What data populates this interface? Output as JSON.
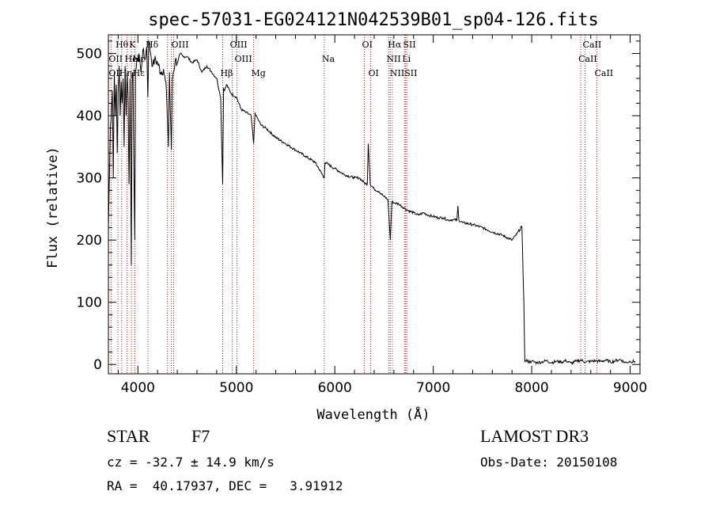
{
  "chart_data": {
    "type": "line",
    "title": "spec-57031-EG024121N042539B01_sp04-126.fits",
    "xlabel": "Wavelength (Å)",
    "ylabel": "Flux (relative)",
    "xlim": [
      3700,
      9100
    ],
    "ylim": [
      -15,
      530
    ],
    "xticks": [
      4000,
      5000,
      6000,
      7000,
      8000,
      9000
    ],
    "yticks": [
      0,
      100,
      200,
      300,
      400,
      500
    ],
    "series": [
      {
        "name": "flux",
        "x": [
          3700,
          3720,
          3740,
          3750,
          3760,
          3770,
          3780,
          3790,
          3800,
          3810,
          3820,
          3830,
          3840,
          3850,
          3860,
          3870,
          3880,
          3890,
          3900,
          3910,
          3920,
          3933,
          3940,
          3950,
          3960,
          3968,
          3975,
          3985,
          3995,
          4010,
          4030,
          4050,
          4070,
          4090,
          4101,
          4110,
          4130,
          4150,
          4170,
          4200,
          4230,
          4260,
          4290,
          4310,
          4320,
          4330,
          4340,
          4350,
          4360,
          4380,
          4400,
          4430,
          4460,
          4500,
          4550,
          4600,
          4650,
          4700,
          4750,
          4800,
          4840,
          4861,
          4870,
          4880,
          4900,
          4950,
          5000,
          5050,
          5100,
          5150,
          5175,
          5190,
          5200,
          5250,
          5300,
          5400,
          5500,
          5600,
          5700,
          5800,
          5893,
          5900,
          6000,
          6100,
          6200,
          6250,
          6300,
          6330,
          6340,
          6360,
          6400,
          6450,
          6500,
          6540,
          6563,
          6580,
          6600,
          6650,
          6700,
          6750,
          6800,
          6850,
          6900,
          6950,
          7000,
          7050,
          7100,
          7150,
          7200,
          7240,
          7250,
          7260,
          7300,
          7400,
          7500,
          7600,
          7700,
          7800,
          7850,
          7900,
          7920,
          7930,
          7940,
          7950,
          7960,
          8000,
          8050,
          8100,
          8150,
          8200,
          8250,
          8300,
          8350,
          8400,
          8450,
          8500,
          8550,
          8600,
          8650,
          8700,
          8750,
          8800,
          8850,
          8900,
          8950,
          9000,
          9050
        ],
        "y": [
          220,
          380,
          440,
          300,
          470,
          400,
          450,
          340,
          440,
          480,
          400,
          455,
          420,
          460,
          350,
          480,
          400,
          470,
          430,
          290,
          460,
          160,
          450,
          470,
          300,
          200,
          470,
          480,
          490,
          500,
          470,
          505,
          490,
          510,
          430,
          520,
          500,
          480,
          490,
          485,
          470,
          475,
          440,
          350,
          470,
          400,
          345,
          460,
          470,
          490,
          485,
          500,
          495,
          495,
          485,
          490,
          470,
          480,
          470,
          460,
          430,
          290,
          445,
          440,
          450,
          435,
          430,
          410,
          405,
          400,
          355,
          405,
          400,
          385,
          380,
          365,
          355,
          345,
          335,
          325,
          300,
          325,
          315,
          305,
          300,
          300,
          292,
          290,
          355,
          290,
          282,
          278,
          270,
          265,
          200,
          262,
          260,
          258,
          252,
          247,
          244,
          240,
          244,
          240,
          238,
          236,
          236,
          232,
          233,
          232,
          255,
          232,
          228,
          225,
          220,
          213,
          208,
          200,
          210,
          222,
          100,
          5,
          5,
          8,
          4,
          5,
          3,
          4,
          6,
          3,
          5,
          4,
          6,
          2,
          5,
          7,
          4,
          5,
          6,
          5,
          7,
          4,
          6,
          8,
          3,
          5,
          5
        ]
      }
    ],
    "line_markers": [
      {
        "label": "Hθ",
        "wl": 3797,
        "row": 1
      },
      {
        "label": "OII",
        "wl": 3727,
        "row": 2
      },
      {
        "label": "OII",
        "wl": 3727,
        "row": 3
      },
      {
        "label": "K",
        "wl": 3934,
        "row": 1
      },
      {
        "label": "HeI",
        "wl": 3889,
        "row": 2
      },
      {
        "label": "Hη",
        "wl": 3835,
        "row": 3
      },
      {
        "label": "Hε",
        "wl": 3970,
        "row": 3
      },
      {
        "label": "Hδ",
        "wl": 4102,
        "row": 1
      },
      {
        "label": "Hε",
        "wl": 3970,
        "row": 2
      },
      {
        "label": "H",
        "wl": 3968,
        "row": 2
      },
      {
        "label": "OIII",
        "wl": 4363,
        "row": 1
      },
      {
        "label": "OIII",
        "wl": 4959,
        "row": 1
      },
      {
        "label": "OIII",
        "wl": 5007,
        "row": 2
      },
      {
        "label": "Hβ",
        "wl": 4861,
        "row": 3
      },
      {
        "label": "Mg",
        "wl": 5175,
        "row": 3
      },
      {
        "label": "Na",
        "wl": 5893,
        "row": 2
      },
      {
        "label": "OI",
        "wl": 6300,
        "row": 1
      },
      {
        "label": "OI",
        "wl": 6364,
        "row": 3
      },
      {
        "label": "Hα",
        "wl": 6563,
        "row": 1
      },
      {
        "label": "NII",
        "wl": 6548,
        "row": 2
      },
      {
        "label": "NII",
        "wl": 6584,
        "row": 3
      },
      {
        "label": "SII",
        "wl": 6717,
        "row": 1
      },
      {
        "label": "Li",
        "wl": 6708,
        "row": 2
      },
      {
        "label": "SII",
        "wl": 6731,
        "row": 3
      },
      {
        "label": "CaII",
        "wl": 8542,
        "row": 1
      },
      {
        "label": "CaII",
        "wl": 8498,
        "row": 2
      },
      {
        "label": "CaII",
        "wl": 8662,
        "row": 3
      }
    ],
    "marker_lines": [
      3727,
      3797,
      3835,
      3889,
      3934,
      3968,
      4102,
      4300,
      4340,
      4363,
      4861,
      4959,
      5007,
      5175,
      5893,
      6300,
      6364,
      6548,
      6563,
      6584,
      6708,
      6717,
      6731,
      8498,
      8542,
      8662
    ]
  },
  "info": {
    "object": "STAR",
    "subclass": "F7",
    "survey": "LAMOST DR3",
    "cz": "cz = -32.7 ± 14.9 km/s",
    "obs_date": "Obs-Date: 20150108",
    "coords": "RA =  40.17937, DEC =   3.91912"
  }
}
